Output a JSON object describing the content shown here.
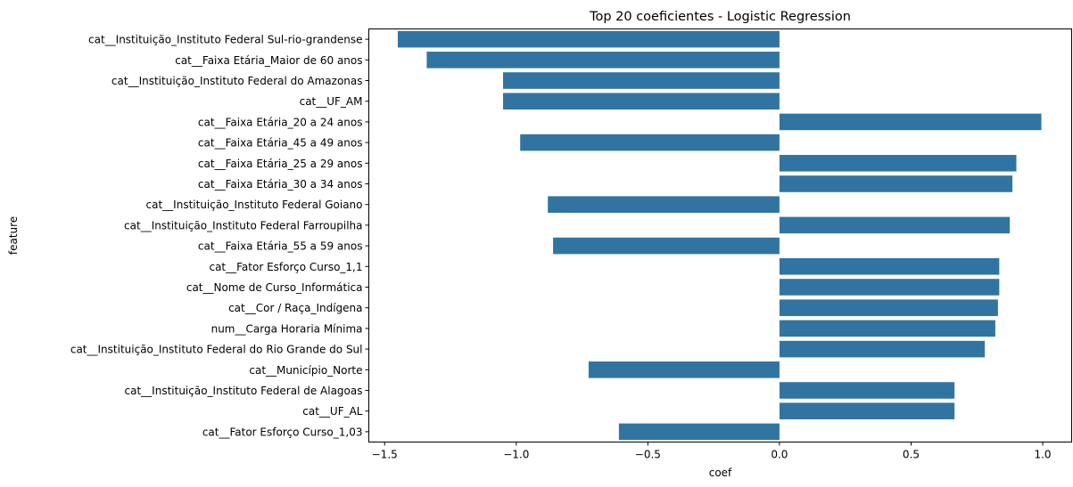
{
  "chart_data": {
    "type": "bar",
    "orientation": "horizontal",
    "title": "Top 20 coeficientes - Logistic Regression",
    "xlabel": "coef",
    "ylabel": "feature",
    "xlim": [
      -1.56,
      1.11
    ],
    "xticks": [
      -1.5,
      -1.0,
      -0.5,
      0.0,
      0.5,
      1.0
    ],
    "xtick_labels": [
      "−1.5",
      "−1.0",
      "−0.5",
      "0.0",
      "0.5",
      "1.0"
    ],
    "grid": false,
    "bar_color": "#3274a1",
    "categories": [
      "cat__Instituição_Instituto Federal Sul-rio-grandense",
      "cat__Faixa Etária_Maior de 60 anos",
      "cat__Instituição_Instituto Federal do Amazonas",
      "cat__UF_AM",
      "cat__Faixa Etária_20 a 24 anos",
      "cat__Faixa Etária_45 a 49 anos",
      "cat__Faixa Etária_25 a 29 anos",
      "cat__Faixa Etária_30 a 34 anos",
      "cat__Instituição_Instituto Federal Goiano",
      "cat__Instituição_Instituto Federal Farroupilha",
      "cat__Faixa Etária_55 a 59 anos",
      "cat__Fator Esforço Curso_1,1",
      "cat__Nome de Curso_Informática",
      "cat__Cor / Raça_Indígena",
      "num__Carga Horaria Mínima",
      "cat__Instituição_Instituto Federal do Rio Grande do Sul",
      "cat__Município_Norte",
      "cat__Instituição_Instituto Federal de Alagoas",
      "cat__UF_AL",
      "cat__Fator Esforço Curso_1,03"
    ],
    "values": [
      -1.45,
      -1.34,
      -1.05,
      -1.05,
      0.995,
      -0.985,
      0.9,
      0.885,
      -0.88,
      0.875,
      -0.86,
      0.835,
      0.835,
      0.83,
      0.82,
      0.78,
      -0.725,
      0.665,
      0.665,
      -0.61
    ]
  }
}
